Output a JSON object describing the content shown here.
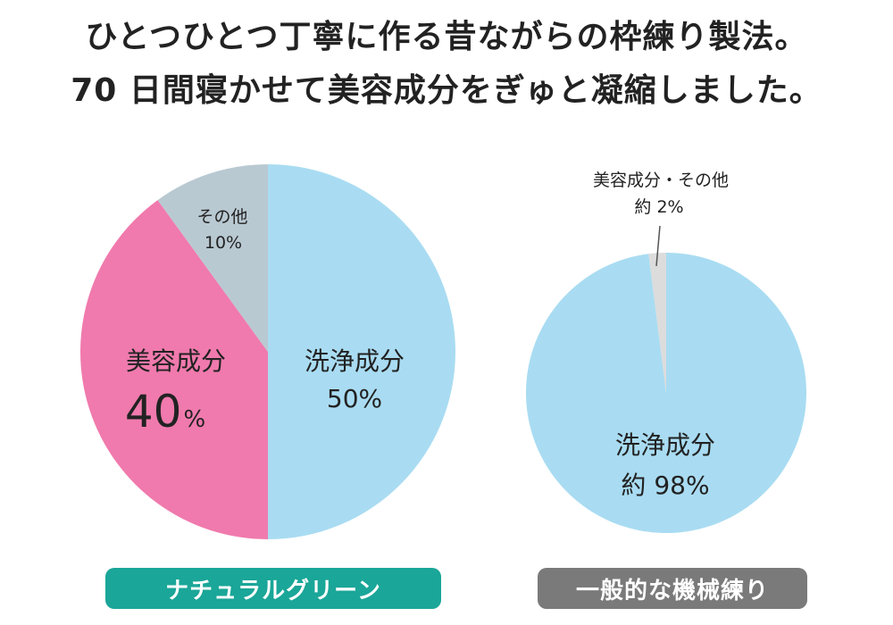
{
  "headline": {
    "line1": "ひとつひとつ丁寧に作る昔ながらの枠練り製法。",
    "line2": "70 日間寝かせて美容成分をぎゅと凝縮しました。"
  },
  "chart_data": [
    {
      "type": "pie",
      "title": "ナチュラルグリーン",
      "start": "top, clockwise",
      "slices": [
        {
          "name": "洗浄成分",
          "value": 50,
          "value_label": "50%",
          "color": "#a9dcf2"
        },
        {
          "name": "美容成分",
          "value": 40,
          "value_number": "40",
          "value_unit": "%",
          "color": "#f07aad"
        },
        {
          "name": "その他",
          "value": 10,
          "value_label": "10%",
          "color": "#b9c9d2"
        }
      ]
    },
    {
      "type": "pie",
      "title": "一般的な機械練り",
      "start": "top, clockwise",
      "slices": [
        {
          "name": "洗浄成分",
          "value": 98,
          "value_label": "約 98%",
          "color": "#a9dcf2"
        },
        {
          "name": "美容成分・その他",
          "value": 2,
          "value_label": "約 2%",
          "color": "#dcdcdc"
        }
      ]
    }
  ],
  "badges": {
    "left": {
      "label": "ナチュラルグリーン",
      "color": "#1aa698"
    },
    "right": {
      "label": "一般的な機械練り",
      "color": "#7a7a7a"
    }
  }
}
